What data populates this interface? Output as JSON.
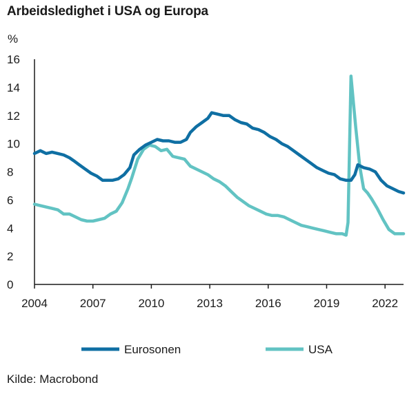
{
  "title": "Arbeidsledighet i USA og Europa",
  "source": "Kilde: Macrobond",
  "chart_data": {
    "type": "line",
    "title": "Arbeidsledighet i USA og Europa",
    "ylabel": "%",
    "xlabel": "",
    "ylim": [
      0,
      16
    ],
    "xlim": [
      2004.0,
      2022.95
    ],
    "yticks": [
      0,
      2,
      4,
      6,
      8,
      10,
      12,
      14,
      16
    ],
    "xticks": [
      "2004",
      "2007",
      "2010",
      "2013",
      "2016",
      "2019",
      "2022"
    ],
    "grid": false,
    "legend": "bottom",
    "series": [
      {
        "name": "Eurosonen",
        "color": "#0f6fa3",
        "x": [
          2004.0,
          2004.3,
          2004.6,
          2004.9,
          2005.2,
          2005.5,
          2005.8,
          2006.0,
          2006.3,
          2006.6,
          2006.9,
          2007.2,
          2007.5,
          2007.8,
          2008.0,
          2008.3,
          2008.6,
          2008.9,
          2009.1,
          2009.4,
          2009.7,
          2010.0,
          2010.3,
          2010.6,
          2010.9,
          2011.2,
          2011.5,
          2011.8,
          2012.0,
          2012.3,
          2012.6,
          2012.9,
          2013.1,
          2013.4,
          2013.7,
          2014.0,
          2014.3,
          2014.6,
          2014.9,
          2015.2,
          2015.5,
          2015.8,
          2016.1,
          2016.4,
          2016.7,
          2017.0,
          2017.3,
          2017.6,
          2017.9,
          2018.2,
          2018.5,
          2018.8,
          2019.1,
          2019.4,
          2019.7,
          2020.0,
          2020.25,
          2020.45,
          2020.6,
          2020.9,
          2021.2,
          2021.5,
          2021.8,
          2022.1,
          2022.4,
          2022.7,
          2022.95
        ],
        "values": [
          9.3,
          9.5,
          9.3,
          9.4,
          9.3,
          9.2,
          9.0,
          8.8,
          8.5,
          8.2,
          7.9,
          7.7,
          7.4,
          7.4,
          7.4,
          7.5,
          7.8,
          8.3,
          9.2,
          9.6,
          9.9,
          10.1,
          10.3,
          10.2,
          10.2,
          10.1,
          10.1,
          10.3,
          10.8,
          11.2,
          11.5,
          11.8,
          12.2,
          12.1,
          12.0,
          12.0,
          11.7,
          11.5,
          11.4,
          11.1,
          11.0,
          10.8,
          10.5,
          10.3,
          10.0,
          9.8,
          9.5,
          9.2,
          8.9,
          8.6,
          8.3,
          8.1,
          7.9,
          7.8,
          7.5,
          7.4,
          7.4,
          7.8,
          8.5,
          8.3,
          8.2,
          8.0,
          7.4,
          7.0,
          6.8,
          6.6,
          6.5
        ]
      },
      {
        "name": "USA",
        "color": "#62c3c3",
        "x": [
          2004.0,
          2004.3,
          2004.6,
          2004.9,
          2005.2,
          2005.5,
          2005.8,
          2006.1,
          2006.4,
          2006.7,
          2007.0,
          2007.3,
          2007.6,
          2007.9,
          2008.2,
          2008.5,
          2008.8,
          2009.0,
          2009.3,
          2009.6,
          2009.9,
          2010.2,
          2010.5,
          2010.8,
          2011.1,
          2011.4,
          2011.7,
          2012.0,
          2012.3,
          2012.6,
          2012.9,
          2013.2,
          2013.5,
          2013.8,
          2014.1,
          2014.4,
          2014.7,
          2015.0,
          2015.3,
          2015.6,
          2015.9,
          2016.2,
          2016.5,
          2016.8,
          2017.1,
          2017.4,
          2017.7,
          2018.0,
          2018.3,
          2018.6,
          2018.9,
          2019.2,
          2019.5,
          2019.8,
          2020.0,
          2020.1,
          2020.25,
          2020.35,
          2020.5,
          2020.7,
          2020.9,
          2021.1,
          2021.3,
          2021.6,
          2021.9,
          2022.2,
          2022.5,
          2022.8,
          2022.95
        ],
        "values": [
          5.7,
          5.6,
          5.5,
          5.4,
          5.3,
          5.0,
          5.0,
          4.8,
          4.6,
          4.5,
          4.5,
          4.6,
          4.7,
          5.0,
          5.2,
          5.8,
          6.8,
          7.6,
          8.9,
          9.6,
          9.9,
          9.8,
          9.5,
          9.6,
          9.1,
          9.0,
          8.9,
          8.4,
          8.2,
          8.0,
          7.8,
          7.5,
          7.3,
          7.0,
          6.6,
          6.2,
          5.9,
          5.6,
          5.4,
          5.2,
          5.0,
          4.9,
          4.9,
          4.8,
          4.6,
          4.4,
          4.2,
          4.1,
          4.0,
          3.9,
          3.8,
          3.7,
          3.6,
          3.6,
          3.5,
          4.4,
          14.8,
          13.3,
          11.1,
          8.4,
          6.8,
          6.5,
          6.1,
          5.4,
          4.6,
          3.9,
          3.6,
          3.6,
          3.6
        ]
      }
    ]
  }
}
